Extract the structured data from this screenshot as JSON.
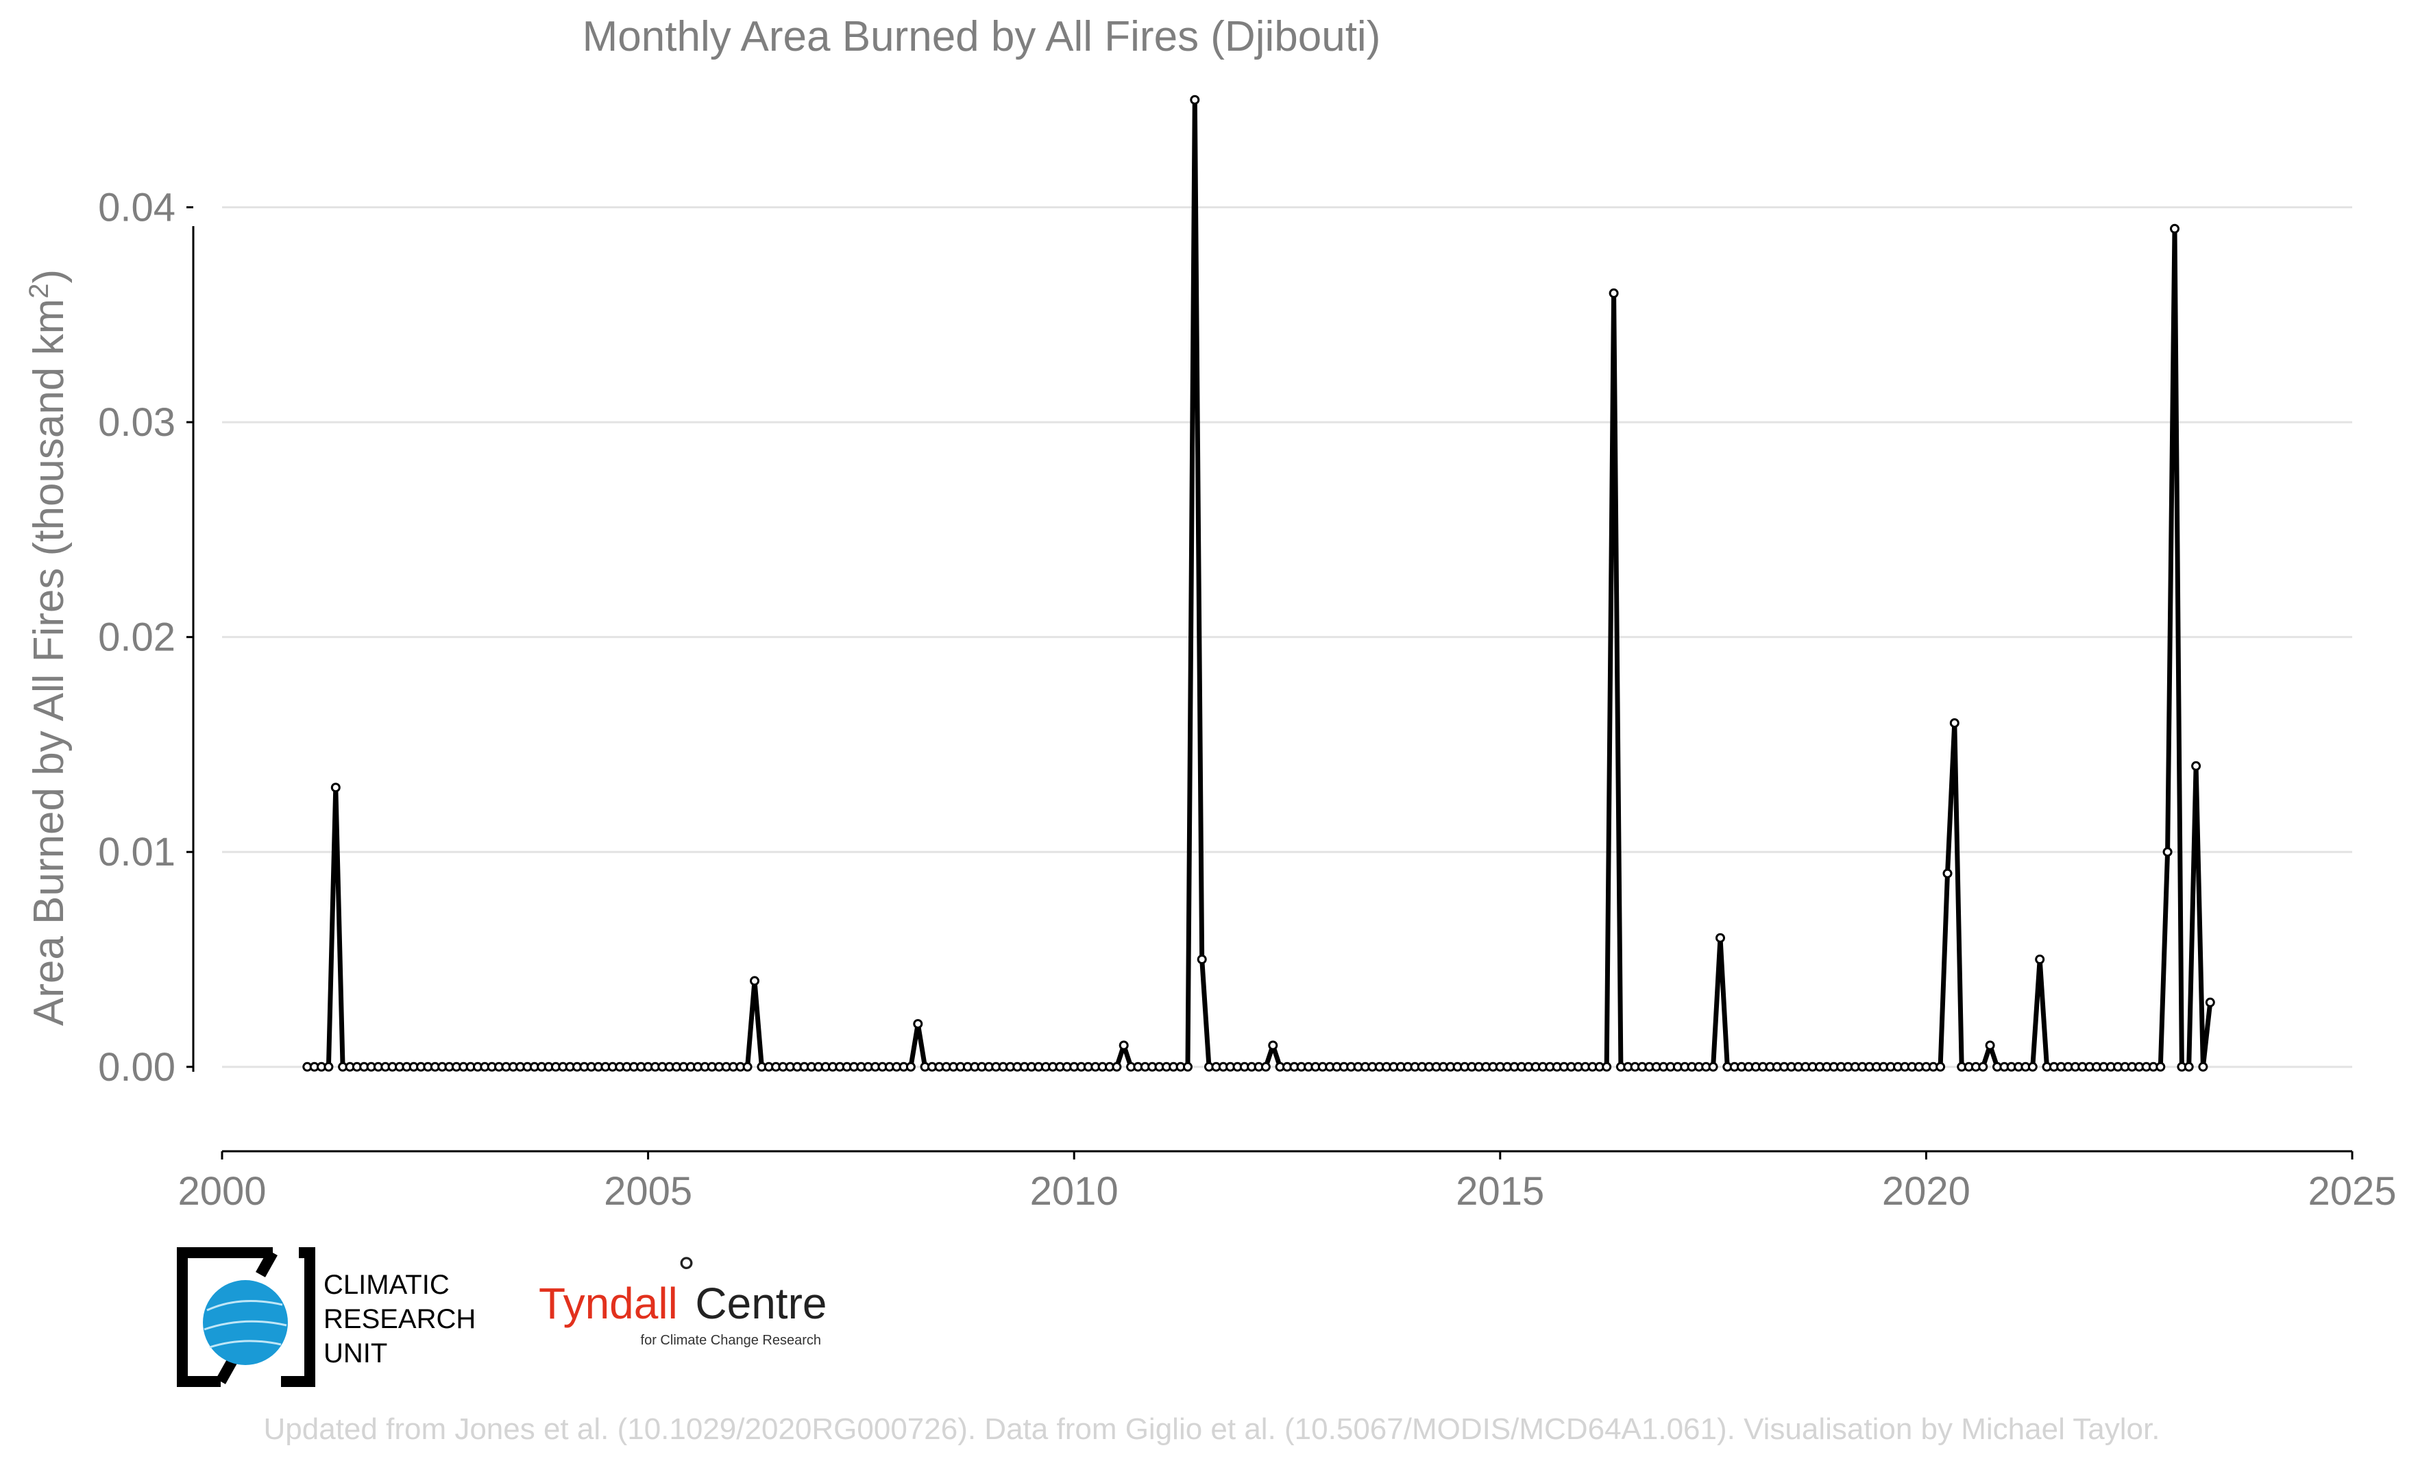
{
  "chart_data": {
    "type": "line",
    "title": "Monthly Area Burned by All Fires (Djibouti)",
    "ylabel_main": "Area Burned by All Fires (thousand km",
    "ylabel_sup": "2",
    "ylabel_end": ")",
    "xlabel": "",
    "xlim": [
      2000,
      2025
    ],
    "ylim": [
      -0.0038,
      0.0455
    ],
    "x_ticks": [
      2000,
      2005,
      2010,
      2015,
      2020,
      2025
    ],
    "y_ticks": [
      0.0,
      0.01,
      0.02,
      0.03,
      0.04
    ],
    "y_tick_labels": [
      "0.00",
      "0.01",
      "0.02",
      "0.03",
      "0.04"
    ],
    "grid": "horizontal",
    "line_color": "#000000",
    "start": "2001-01",
    "series": [
      {
        "values": [
          0,
          0,
          0,
          0,
          0.013,
          0,
          0,
          0,
          0,
          0,
          0,
          0,
          0,
          0,
          0,
          0,
          0,
          0,
          0,
          0,
          0,
          0,
          0,
          0,
          0,
          0,
          0,
          0,
          0,
          0,
          0,
          0,
          0,
          0,
          0,
          0,
          0,
          0,
          0,
          0,
          0,
          0,
          0,
          0,
          0,
          0,
          0,
          0,
          0,
          0,
          0,
          0,
          0,
          0,
          0,
          0,
          0,
          0,
          0,
          0,
          0,
          0,
          0,
          0.004,
          0,
          0,
          0,
          0,
          0,
          0,
          0,
          0,
          0,
          0,
          0,
          0,
          0,
          0,
          0,
          0,
          0,
          0,
          0,
          0,
          0,
          0,
          0.002,
          0,
          0,
          0,
          0,
          0,
          0,
          0,
          0,
          0,
          0,
          0,
          0,
          0,
          0,
          0,
          0,
          0,
          0,
          0,
          0,
          0,
          0,
          0,
          0,
          0,
          0,
          0,
          0,
          0.001,
          0,
          0,
          0,
          0,
          0,
          0,
          0,
          0,
          0,
          0.045,
          0.005,
          0,
          0,
          0,
          0,
          0,
          0,
          0,
          0,
          0,
          0.001,
          0,
          0,
          0,
          0,
          0,
          0,
          0,
          0,
          0,
          0,
          0,
          0,
          0,
          0,
          0,
          0,
          0,
          0,
          0,
          0,
          0,
          0,
          0,
          0,
          0,
          0,
          0,
          0,
          0,
          0,
          0,
          0,
          0,
          0,
          0,
          0,
          0,
          0,
          0,
          0,
          0,
          0,
          0,
          0,
          0,
          0,
          0,
          0.036,
          0,
          0,
          0,
          0,
          0,
          0,
          0,
          0,
          0,
          0,
          0,
          0,
          0,
          0,
          0.006,
          0,
          0,
          0,
          0,
          0,
          0,
          0,
          0,
          0,
          0,
          0,
          0,
          0,
          0,
          0,
          0,
          0,
          0,
          0,
          0,
          0,
          0,
          0,
          0,
          0,
          0,
          0,
          0,
          0,
          0,
          0,
          0.009,
          0.016,
          0,
          0,
          0,
          0,
          0.001,
          0,
          0,
          0,
          0,
          0,
          0,
          0.005,
          0,
          0,
          0,
          0,
          0,
          0,
          0,
          0,
          0,
          0,
          0,
          0,
          0,
          0,
          0,
          0,
          0,
          0.01,
          0.039,
          0,
          0,
          0.014,
          0,
          0.003
        ]
      }
    ]
  },
  "logos": {
    "cru_line1": "CLIMATIC",
    "cru_line2": "RESEARCH",
    "cru_line3": "UNIT",
    "tyndall_red": "Tyndall",
    "tyndall_degree": "°",
    "tyndall_black": "Centre",
    "tyndall_sub": "for Climate Change Research"
  },
  "footer": {
    "credit": "Updated from Jones et al. (10.1029/2020RG000726). Data from Giglio et al. (10.5067/MODIS/MCD64A1.061). Visualisation by Michael Taylor."
  },
  "colors": {
    "text_gray": "#7f7f7f",
    "grid": "#e3e3e3",
    "cru_blue": "#1a9ad6",
    "tyndall_red": "#e2311d",
    "footer_gray": "#d4d4d4"
  }
}
